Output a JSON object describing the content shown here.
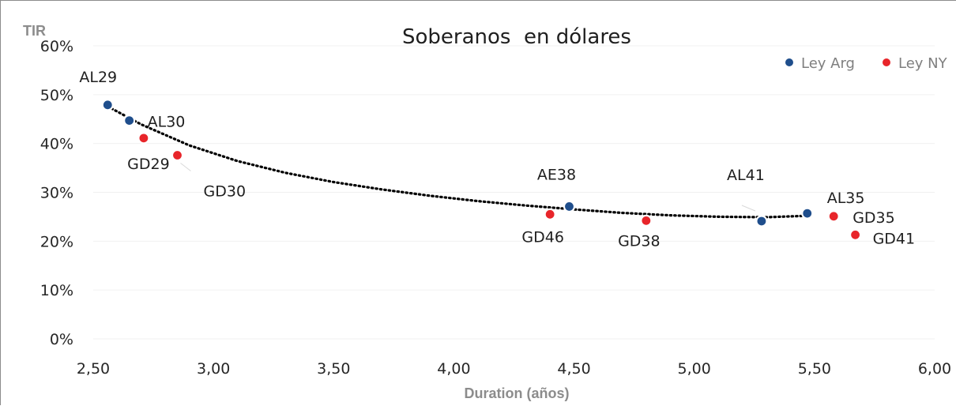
{
  "chart_data": {
    "type": "scatter",
    "title": "Soberanos  en dólares",
    "xlabel": "Duration (años)",
    "ylabel": "TIR",
    "xlim": [
      2.5,
      6.0
    ],
    "ylim": [
      0,
      60
    ],
    "x_ticks": [
      "2,50",
      "3,00",
      "3,50",
      "4,00",
      "4,50",
      "5,00",
      "5,50",
      "6,00"
    ],
    "y_ticks": [
      "0%",
      "10%",
      "20%",
      "30%",
      "40%",
      "50%",
      "60%"
    ],
    "grid": true,
    "legend_position": "top-right",
    "series": [
      {
        "name": "Ley Arg",
        "color": "#1f4e8c",
        "points": [
          {
            "label": "AL29",
            "x": 2.56,
            "y": 47.9
          },
          {
            "label": "AL30",
            "x": 2.65,
            "y": 44.7
          },
          {
            "label": "AE38",
            "x": 4.48,
            "y": 27.1
          },
          {
            "label": "AL41",
            "x": 5.28,
            "y": 24.1
          },
          {
            "label": "AL35",
            "x": 5.47,
            "y": 25.7
          }
        ]
      },
      {
        "name": "Ley NY",
        "color": "#e8252a",
        "points": [
          {
            "label": "GD29",
            "x": 2.71,
            "y": 41.1
          },
          {
            "label": "GD30",
            "x": 2.85,
            "y": 37.6
          },
          {
            "label": "GD46",
            "x": 4.4,
            "y": 25.5
          },
          {
            "label": "GD38",
            "x": 4.8,
            "y": 24.2
          },
          {
            "label": "GD35",
            "x": 5.58,
            "y": 25.1
          },
          {
            "label": "GD41",
            "x": 5.67,
            "y": 21.3
          }
        ]
      }
    ],
    "trendline": {
      "style": "dotted",
      "color": "#000000",
      "x": [
        2.56,
        2.7,
        2.9,
        3.1,
        3.3,
        3.5,
        3.7,
        3.9,
        4.1,
        4.3,
        4.5,
        4.7,
        4.9,
        5.1,
        5.3,
        5.47
      ],
      "y": [
        47.6,
        43.9,
        39.6,
        36.4,
        34.0,
        32.1,
        30.6,
        29.3,
        28.2,
        27.3,
        26.5,
        25.8,
        25.3,
        25.0,
        24.9,
        25.2
      ]
    }
  }
}
